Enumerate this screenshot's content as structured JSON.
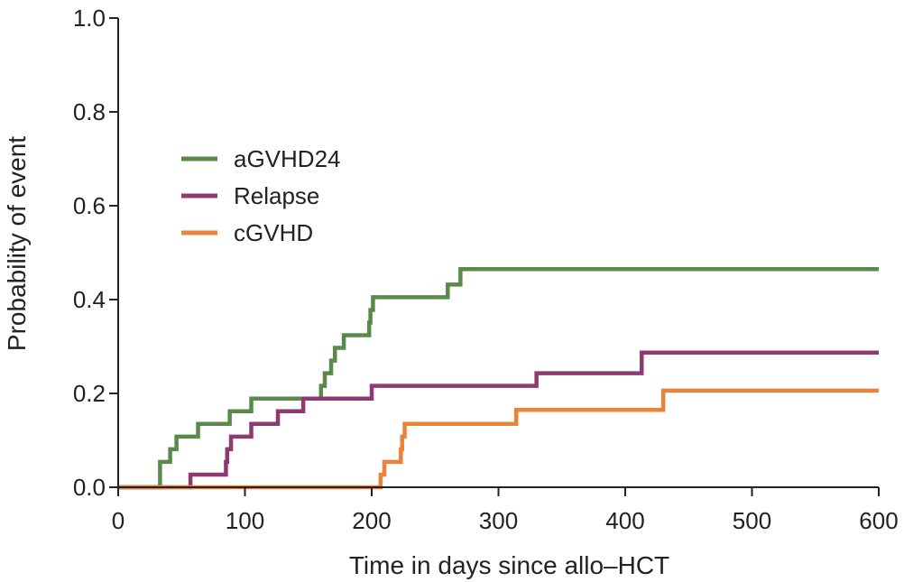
{
  "chart_data": {
    "type": "line",
    "step": true,
    "title": "",
    "xlabel": "Time in days since allo–HCT",
    "ylabel": "Probability of event",
    "xlim": [
      0,
      600
    ],
    "ylim": [
      0,
      1
    ],
    "xticks": [
      0,
      100,
      200,
      300,
      400,
      500,
      600
    ],
    "yticks": [
      0.0,
      0.2,
      0.4,
      0.6,
      0.8,
      1.0
    ],
    "xtick_labels": [
      "0",
      "100",
      "200",
      "300",
      "400",
      "500",
      "600"
    ],
    "ytick_labels": [
      "0.0",
      "0.2",
      "0.4",
      "0.6",
      "0.8",
      "1.0"
    ],
    "grid": false,
    "legend_position": "upper-left",
    "series": [
      {
        "name": "aGVHD24",
        "color": "#5a8a4a",
        "points": [
          [
            0,
            0
          ],
          [
            33,
            0
          ],
          [
            33,
            0.054
          ],
          [
            41,
            0.054
          ],
          [
            41,
            0.081
          ],
          [
            46,
            0.081
          ],
          [
            46,
            0.108
          ],
          [
            63,
            0.108
          ],
          [
            63,
            0.135
          ],
          [
            88,
            0.135
          ],
          [
            88,
            0.162
          ],
          [
            105,
            0.162
          ],
          [
            105,
            0.189
          ],
          [
            160,
            0.189
          ],
          [
            160,
            0.216
          ],
          [
            163,
            0.216
          ],
          [
            163,
            0.243
          ],
          [
            168,
            0.243
          ],
          [
            168,
            0.27
          ],
          [
            171,
            0.27
          ],
          [
            171,
            0.297
          ],
          [
            178,
            0.297
          ],
          [
            178,
            0.324
          ],
          [
            198,
            0.324
          ],
          [
            198,
            0.351
          ],
          [
            199,
            0.351
          ],
          [
            199,
            0.378
          ],
          [
            201,
            0.378
          ],
          [
            201,
            0.405
          ],
          [
            260,
            0.405
          ],
          [
            260,
            0.432
          ],
          [
            270,
            0.432
          ],
          [
            270,
            0.465
          ],
          [
            600,
            0.465
          ]
        ]
      },
      {
        "name": "Relapse",
        "color": "#8c3a70",
        "points": [
          [
            0,
            0
          ],
          [
            57,
            0
          ],
          [
            57,
            0.027
          ],
          [
            85,
            0.027
          ],
          [
            85,
            0.054
          ],
          [
            86,
            0.054
          ],
          [
            86,
            0.081
          ],
          [
            89,
            0.081
          ],
          [
            89,
            0.108
          ],
          [
            105,
            0.108
          ],
          [
            105,
            0.135
          ],
          [
            126,
            0.135
          ],
          [
            126,
            0.162
          ],
          [
            146,
            0.162
          ],
          [
            146,
            0.189
          ],
          [
            200,
            0.189
          ],
          [
            200,
            0.216
          ],
          [
            330,
            0.216
          ],
          [
            330,
            0.243
          ],
          [
            413,
            0.243
          ],
          [
            413,
            0.287
          ],
          [
            600,
            0.287
          ]
        ]
      },
      {
        "name": "cGVHD",
        "color": "#e8833a",
        "points": [
          [
            0,
            0
          ],
          [
            207,
            0
          ],
          [
            207,
            0.027
          ],
          [
            210,
            0.027
          ],
          [
            210,
            0.054
          ],
          [
            223,
            0.054
          ],
          [
            223,
            0.081
          ],
          [
            224,
            0.081
          ],
          [
            224,
            0.108
          ],
          [
            226,
            0.108
          ],
          [
            226,
            0.135
          ],
          [
            314,
            0.135
          ],
          [
            314,
            0.165
          ],
          [
            430,
            0.165
          ],
          [
            430,
            0.206
          ],
          [
            600,
            0.206
          ]
        ]
      }
    ]
  }
}
